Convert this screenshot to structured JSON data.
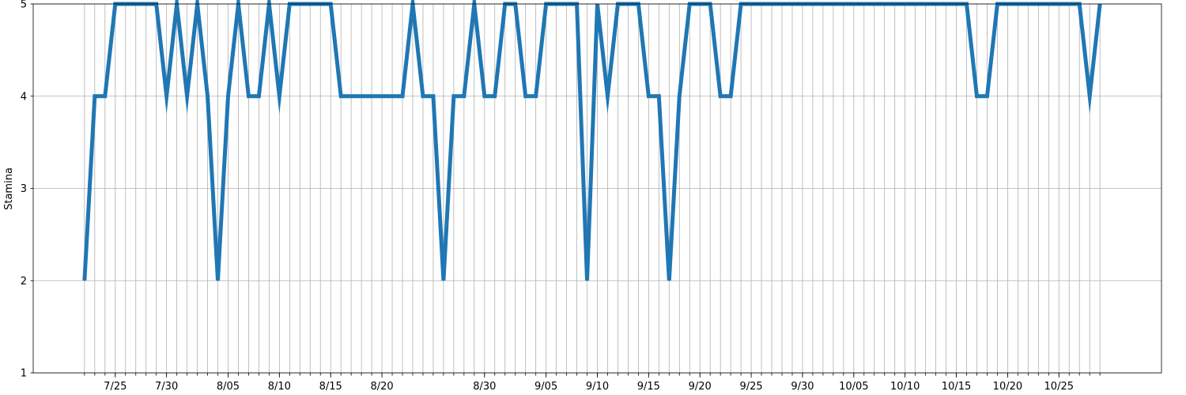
{
  "chart_data": {
    "type": "line",
    "title": "",
    "xlabel": "",
    "ylabel": "Stamina",
    "ylim": [
      1,
      5
    ],
    "yticks": [
      1,
      2,
      3,
      4,
      5
    ],
    "xlim": [
      "7/17",
      "11/04"
    ],
    "x_major_labels": [
      {
        "date": "7/25",
        "label": "7/25"
      },
      {
        "date": "7/30",
        "label": "7/30"
      },
      {
        "date": "8/05",
        "label": "8/05"
      },
      {
        "date": "8/10",
        "label": "8/10"
      },
      {
        "date": "8/15",
        "label": "8/15"
      },
      {
        "date": "8/20",
        "label": "8/20"
      },
      {
        "date": "8/30",
        "label": "8/30"
      },
      {
        "date": "9/05",
        "label": "9/05"
      },
      {
        "date": "9/10",
        "label": "9/10"
      },
      {
        "date": "9/15",
        "label": "9/15"
      },
      {
        "date": "9/20",
        "label": "9/20"
      },
      {
        "date": "9/25",
        "label": "9/25"
      },
      {
        "date": "9/30",
        "label": "9/30"
      },
      {
        "date": "10/05",
        "label": "10/05"
      },
      {
        "date": "10/10",
        "label": "10/10"
      },
      {
        "date": "10/15",
        "label": "10/15"
      },
      {
        "date": "10/20",
        "label": "10/20"
      },
      {
        "date": "10/25",
        "label": "10/25"
      }
    ],
    "grid": true,
    "color": "#1f77b4",
    "series": [
      {
        "x_start": "7/22",
        "x_end": "10/29",
        "values": [
          2,
          4,
          4,
          5,
          5,
          5,
          5,
          5,
          4,
          5,
          4,
          5,
          4,
          2,
          4,
          5,
          4,
          4,
          5,
          4,
          5,
          5,
          5,
          5,
          5,
          4,
          4,
          4,
          4,
          4,
          4,
          4,
          5,
          4,
          4,
          2,
          4,
          4,
          5,
          4,
          4,
          5,
          5,
          4,
          4,
          5,
          5,
          5,
          5,
          2,
          5,
          4,
          5,
          5,
          5,
          4,
          4,
          2,
          4,
          5,
          5,
          5,
          4,
          4,
          5,
          5,
          5,
          5,
          5,
          5,
          5,
          5,
          5,
          5,
          5,
          5,
          5,
          5,
          5,
          5,
          5,
          5,
          5,
          5,
          5,
          5,
          5,
          4,
          4,
          5,
          5,
          5,
          5,
          5,
          5,
          5,
          5,
          5,
          4,
          5
        ]
      }
    ]
  }
}
